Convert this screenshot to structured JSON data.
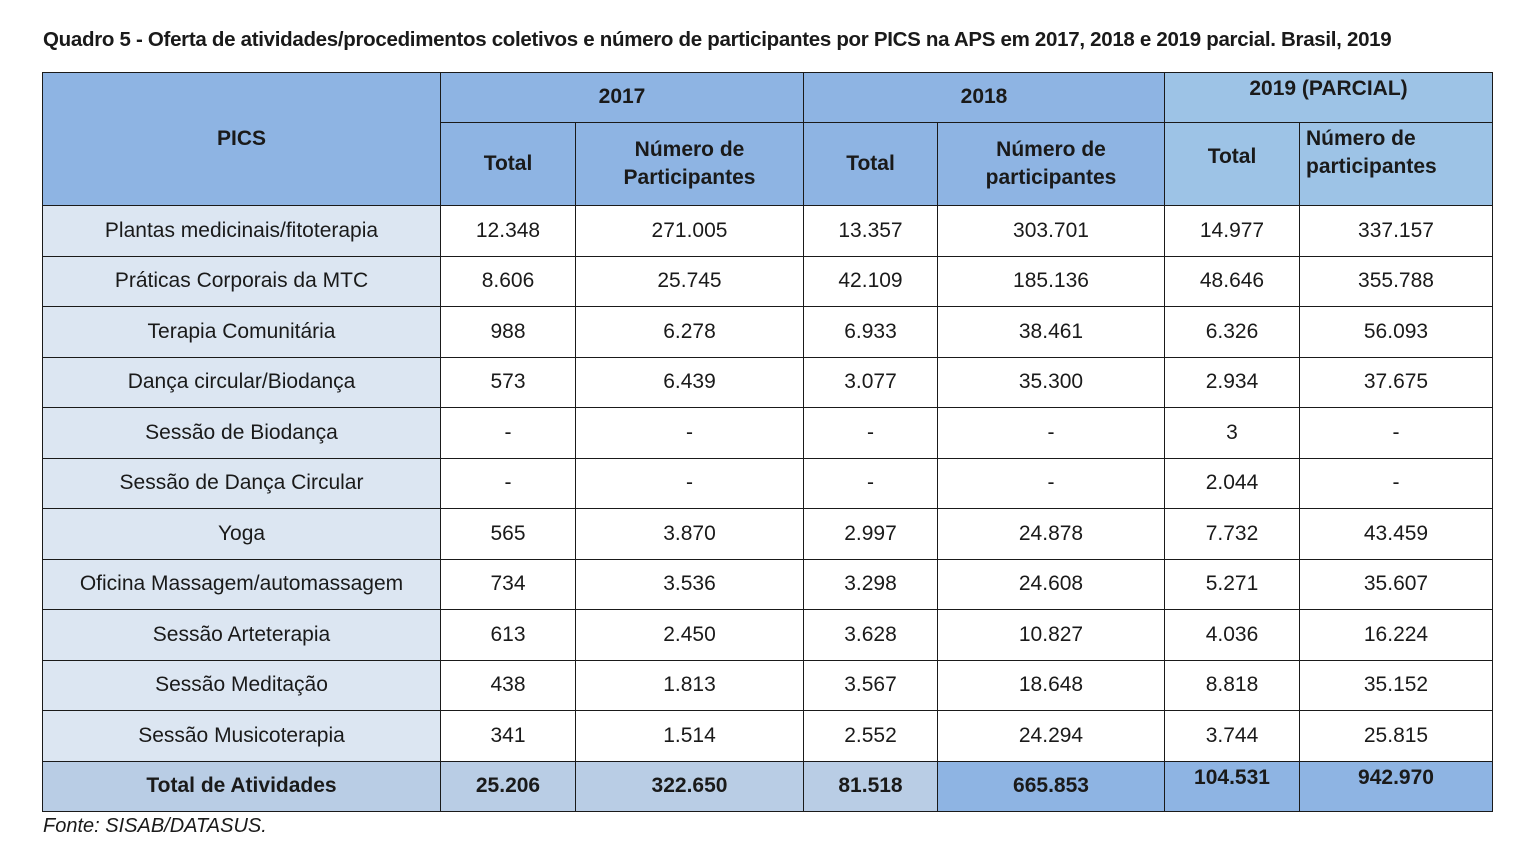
{
  "caption": "Quadro 5 - Oferta de atividades/procedimentos coletivos e número de participantes por PICS na APS em 2017, 2018 e 2019 parcial. Brasil, 2019",
  "header": {
    "pics": "PICS",
    "year_2017": "2017",
    "year_2018": "2018",
    "year_2019": "2019 (PARCIAL)",
    "total": "Total",
    "participantes_2017_line1": "Número de",
    "participantes_2017_line2": "Participantes",
    "participantes_2018_line1": "Número de",
    "participantes_2018_line2": "participantes",
    "participantes_2019_line1": "Número de",
    "participantes_2019_line2": "participantes"
  },
  "rows": [
    {
      "label": "Plantas medicinais/fitoterapia",
      "t2017": "12.348",
      "p2017": "271.005",
      "t2018": "13.357",
      "p2018": "303.701",
      "t2019": "14.977",
      "p2019": "337.157"
    },
    {
      "label": "Práticas Corporais da MTC",
      "t2017": "8.606",
      "p2017": "25.745",
      "t2018": "42.109",
      "p2018": "185.136",
      "t2019": "48.646",
      "p2019": "355.788"
    },
    {
      "label": "Terapia Comunitária",
      "t2017": "988",
      "p2017": "6.278",
      "t2018": "6.933",
      "p2018": "38.461",
      "t2019": "6.326",
      "p2019": "56.093"
    },
    {
      "label": "Dança circular/Biodança",
      "t2017": "573",
      "p2017": "6.439",
      "t2018": "3.077",
      "p2018": "35.300",
      "t2019": "2.934",
      "p2019": "37.675"
    },
    {
      "label": "Sessão de Biodança",
      "t2017": "-",
      "p2017": "-",
      "t2018": "-",
      "p2018": "-",
      "t2019": "3",
      "p2019": "-"
    },
    {
      "label": "Sessão de Dança Circular",
      "t2017": "-",
      "p2017": "-",
      "t2018": "-",
      "p2018": "-",
      "t2019": "2.044",
      "p2019": "-"
    },
    {
      "label": "Yoga",
      "t2017": "565",
      "p2017": "3.870",
      "t2018": "2.997",
      "p2018": "24.878",
      "t2019": "7.732",
      "p2019": "43.459"
    },
    {
      "label": "Oficina Massagem/automassagem",
      "t2017": "734",
      "p2017": "3.536",
      "t2018": "3.298",
      "p2018": "24.608",
      "t2019": "5.271",
      "p2019": "35.607"
    },
    {
      "label": "Sessão Arteterapia",
      "t2017": "613",
      "p2017": "2.450",
      "t2018": "3.628",
      "p2018": "10.827",
      "t2019": "4.036",
      "p2019": "16.224"
    },
    {
      "label": "Sessão Meditação",
      "t2017": "438",
      "p2017": "1.813",
      "t2018": "3.567",
      "p2018": "18.648",
      "t2019": "8.818",
      "p2019": "35.152"
    },
    {
      "label": "Sessão Musicoterapia",
      "t2017": "341",
      "p2017": "1.514",
      "t2018": "2.552",
      "p2018": "24.294",
      "t2019": "3.744",
      "p2019": "25.815"
    }
  ],
  "totals": {
    "label": "Total de Atividades",
    "t2017": "25.206",
    "p2017": "322.650",
    "t2018": "81.518",
    "p2018": "665.853",
    "t2019": "104.531",
    "p2019": "942.970"
  },
  "source": "Fonte: SISAB/DATASUS.",
  "colors": {
    "header_blue": "#8eb4e3",
    "header_2019_blue": "#9dc3e6",
    "label_cell_blue": "#dce6f2",
    "total_row_blue": "#b9cde5"
  }
}
